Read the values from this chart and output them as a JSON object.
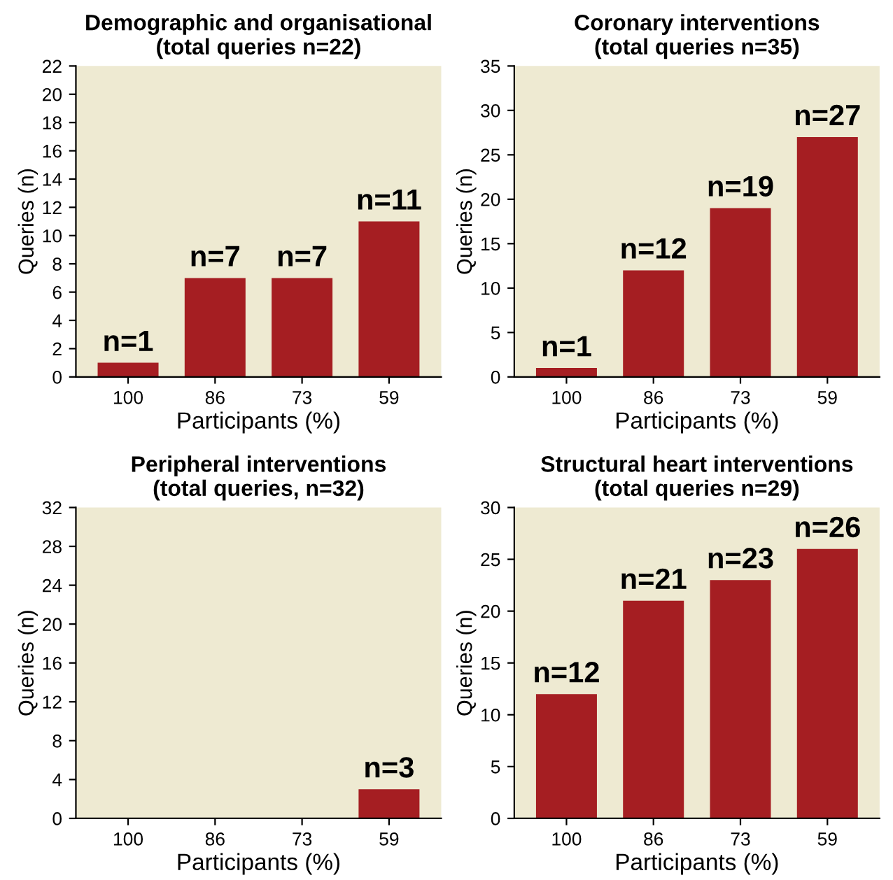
{
  "chart_data": [
    {
      "type": "bar",
      "title": "Demographic and organisational\n(total queries n=22)",
      "xlabel": "Participants (%)",
      "ylabel": "Queries (n)",
      "categories": [
        "100",
        "86",
        "73",
        "59"
      ],
      "values": [
        1,
        7,
        7,
        11
      ],
      "value_labels": [
        "n=1",
        "n=7",
        "n=7",
        "n=11"
      ],
      "color": "#a51e22",
      "ylim": [
        0,
        22
      ],
      "yticks": [
        0,
        2,
        4,
        6,
        8,
        10,
        12,
        14,
        16,
        18,
        20,
        22
      ],
      "grid": false
    },
    {
      "type": "bar",
      "title": "Coronary interventions\n(total queries n=35)",
      "xlabel": "Participants (%)",
      "ylabel": "Queries (n)",
      "categories": [
        "100",
        "86",
        "73",
        "59"
      ],
      "values": [
        1,
        12,
        19,
        27
      ],
      "value_labels": [
        "n=1",
        "n=12",
        "n=19",
        "n=27"
      ],
      "color": "#a51e22",
      "ylim": [
        0,
        35
      ],
      "yticks": [
        0,
        5,
        10,
        15,
        20,
        25,
        30,
        35
      ],
      "grid": false
    },
    {
      "type": "bar",
      "title": "Peripheral interventions\n(total queries, n=32)",
      "xlabel": "Participants (%)",
      "ylabel": "Queries (n)",
      "categories": [
        "100",
        "86",
        "73",
        "59"
      ],
      "values": [
        0,
        0,
        0,
        3
      ],
      "value_labels": [
        null,
        null,
        null,
        "n=3"
      ],
      "color": "#a51e22",
      "ylim": [
        0,
        32
      ],
      "yticks": [
        0,
        4,
        8,
        12,
        16,
        20,
        24,
        28,
        32
      ],
      "grid": false
    },
    {
      "type": "bar",
      "title": "Structural heart interventions\n(total queries n=29)",
      "xlabel": "Participants (%)",
      "ylabel": "Queries (n)",
      "categories": [
        "100",
        "86",
        "73",
        "59"
      ],
      "values": [
        12,
        21,
        23,
        26
      ],
      "value_labels": [
        "n=12",
        "n=21",
        "n=23",
        "n=26"
      ],
      "color": "#a51e22",
      "ylim": [
        0,
        30
      ],
      "yticks": [
        0,
        5,
        10,
        15,
        20,
        25,
        30
      ],
      "grid": false
    }
  ]
}
